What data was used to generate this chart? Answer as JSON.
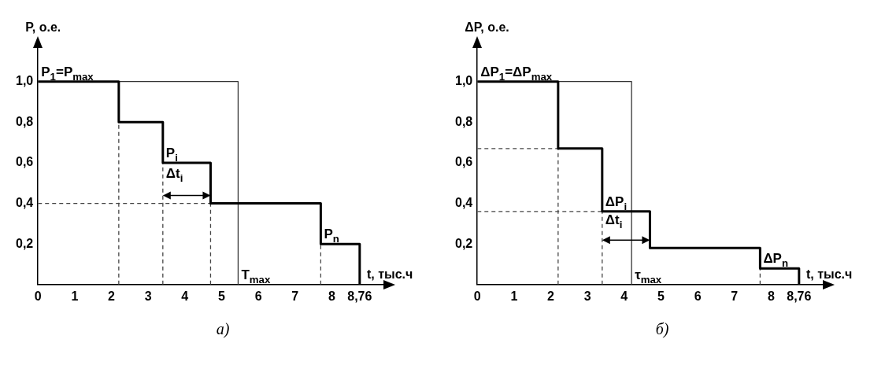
{
  "chart_data": [
    {
      "type": "step",
      "ylabel": "P, о.е.",
      "xlabel": "t, тыс.ч",
      "xlim": [
        0,
        9.6
      ],
      "ylim": [
        0,
        1.2
      ],
      "xticks": [
        0,
        1,
        2,
        3,
        4,
        5,
        6,
        7,
        8,
        {
          "value": 8.76,
          "label": "8,76"
        }
      ],
      "yticks": [
        {
          "value": 0.2,
          "label": "0,2"
        },
        {
          "value": 0.4,
          "label": "0,4"
        },
        {
          "value": 0.6,
          "label": "0,6"
        },
        {
          "value": 0.8,
          "label": "0,8"
        },
        {
          "value": 1.0,
          "label": "1,0"
        }
      ],
      "series": [
        {
          "type": "step",
          "color": "#000000",
          "x": [
            0,
            2.2,
            3.4,
            4.7,
            7.7,
            8.76
          ],
          "values": [
            1,
            0.8,
            0.6,
            0.4,
            0.2,
            0
          ]
        },
        {
          "type": "line",
          "color": "#333333",
          "x": [
            0,
            5.45,
            5.45
          ],
          "values": [
            1,
            1,
            0
          ]
        },
        {
          "type": "line",
          "color": "#444444",
          "line_style": "dashed",
          "x": [
            2.2,
            2.2
          ],
          "values": [
            0,
            0.8
          ]
        },
        {
          "type": "line",
          "color": "#444444",
          "line_style": "dashed",
          "x": [
            3.4,
            3.4
          ],
          "values": [
            0,
            0.6
          ]
        },
        {
          "type": "line",
          "color": "#444444",
          "line_style": "dashed",
          "x": [
            4.7,
            4.7
          ],
          "values": [
            0,
            0.4
          ]
        },
        {
          "type": "line",
          "color": "#444444",
          "line_style": "dashed",
          "x": [
            7.7,
            7.7
          ],
          "values": [
            0,
            0.2
          ]
        },
        {
          "type": "line",
          "color": "#444444",
          "line_style": "dashed",
          "x": [
            0,
            4.7
          ],
          "values": [
            0.4,
            0.4
          ]
        }
      ],
      "annotations": [
        {
          "text": "P$_{1}$=P$_{max}$",
          "x": 0,
          "y": 1
        },
        {
          "text": "P$_{i}$",
          "x": 3.4,
          "y": 0.6
        },
        {
          "text": "Δt$_{i}$",
          "x": 3.4,
          "y": 0.5
        },
        {
          "text": "P$_{n}$",
          "x": 7.7,
          "y": 0.2
        },
        {
          "text": "T$_{max}$",
          "x": 5.45,
          "y": 0
        },
        "а)"
      ]
    },
    {
      "type": "step",
      "ylabel": "ΔP, о.е.",
      "xlabel": "t, тыс.ч",
      "xlim": [
        0,
        9.6
      ],
      "ylim": [
        0,
        1.2
      ],
      "xticks": [
        0,
        1,
        2,
        3,
        4,
        5,
        6,
        7,
        8,
        {
          "value": 8.76,
          "label": "8,76"
        }
      ],
      "yticks": [
        {
          "value": 0.2,
          "label": "0,2"
        },
        {
          "value": 0.4,
          "label": "0,4"
        },
        {
          "value": 0.6,
          "label": "0,6"
        },
        {
          "value": 0.8,
          "label": "0,8"
        },
        {
          "value": 1.0,
          "label": "1,0"
        }
      ],
      "series": [
        {
          "type": "step",
          "color": "#000000",
          "x": [
            0,
            2.2,
            3.4,
            4.7,
            7.7,
            8.76
          ],
          "values": [
            1,
            0.67,
            0.36,
            0.18,
            0.08,
            0
          ]
        },
        {
          "type": "line",
          "color": "#333333",
          "x": [
            0,
            4.2,
            4.2
          ],
          "values": [
            1,
            1,
            0
          ]
        },
        {
          "type": "line",
          "color": "#444444",
          "line_style": "dashed",
          "x": [
            2.2,
            2.2
          ],
          "values": [
            0,
            0.67
          ]
        },
        {
          "type": "line",
          "color": "#444444",
          "line_style": "dashed",
          "x": [
            3.4,
            3.4
          ],
          "values": [
            0,
            0.36
          ]
        },
        {
          "type": "line",
          "color": "#444444",
          "line_style": "dashed",
          "x": [
            7.7,
            7.7
          ],
          "values": [
            0,
            0.08
          ]
        },
        {
          "type": "line",
          "color": "#444444",
          "line_style": "dashed",
          "x": [
            0,
            2.2
          ],
          "values": [
            0.67,
            0.67
          ]
        },
        {
          "type": "line",
          "color": "#444444",
          "line_style": "dashed",
          "x": [
            0,
            3.4
          ],
          "values": [
            0.36,
            0.36
          ]
        }
      ],
      "annotations": [
        {
          "text": "ΔP$_{1}$=ΔP$_{max}$",
          "x": 0,
          "y": 1
        },
        {
          "text": "ΔP$_{i}$",
          "x": 3.4,
          "y": 0.36
        },
        {
          "text": "Δt$_{i}$",
          "x": 3.4,
          "y": 0.27
        },
        {
          "text": "ΔP$_{n}$",
          "x": 7.7,
          "y": 0.08
        },
        {
          "text": "τ$_{max}$",
          "x": 4.2,
          "y": 0
        },
        "б)"
      ]
    }
  ]
}
